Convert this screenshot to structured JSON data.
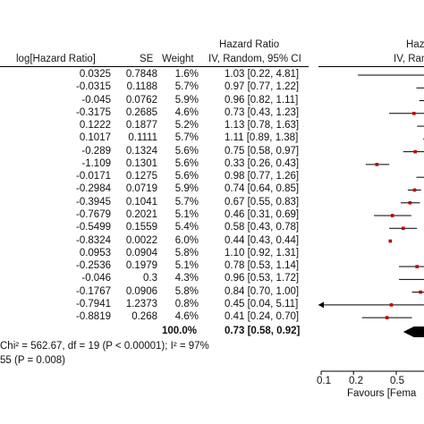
{
  "chart_data": {
    "type": "forest",
    "headers": {
      "log_hr": "log[Hazard Ratio]",
      "se": "SE",
      "weight": "Weight",
      "hr_title": "Hazard Ratio",
      "hr_sub": "IV, Random, 95% CI",
      "plot_title": "Hazard",
      "plot_sub": "IV, Random"
    },
    "rows": [
      {
        "log_hr": "0.0325",
        "se": "0.7848",
        "weight": "1.6%",
        "ci_text": "1.03 [0.22, 4.81]",
        "hr": 1.03,
        "lo": 0.22,
        "hi": 4.81
      },
      {
        "log_hr": "-0.0315",
        "se": "0.1188",
        "weight": "5.7%",
        "ci_text": "0.97 [0.77, 1.22]",
        "hr": 0.97,
        "lo": 0.77,
        "hi": 1.22
      },
      {
        "log_hr": "-0.045",
        "se": "0.0762",
        "weight": "5.9%",
        "ci_text": "0.96 [0.82, 1.11]",
        "hr": 0.96,
        "lo": 0.82,
        "hi": 1.11
      },
      {
        "log_hr": "-0.3175",
        "se": "0.2685",
        "weight": "4.6%",
        "ci_text": "0.73 [0.43, 1.23]",
        "hr": 0.73,
        "lo": 0.43,
        "hi": 1.23
      },
      {
        "log_hr": "0.1222",
        "se": "0.1877",
        "weight": "5.2%",
        "ci_text": "1.13 [0.78, 1.63]",
        "hr": 1.13,
        "lo": 0.78,
        "hi": 1.63
      },
      {
        "log_hr": "0.1017",
        "se": "0.1111",
        "weight": "5.7%",
        "ci_text": "1.11 [0.89, 1.38]",
        "hr": 1.11,
        "lo": 0.89,
        "hi": 1.38
      },
      {
        "log_hr": "-0.289",
        "se": "0.1324",
        "weight": "5.6%",
        "ci_text": "0.75 [0.58, 0.97]",
        "hr": 0.75,
        "lo": 0.58,
        "hi": 0.97
      },
      {
        "log_hr": "-1.109",
        "se": "0.1301",
        "weight": "5.6%",
        "ci_text": "0.33 [0.26, 0.43]",
        "hr": 0.33,
        "lo": 0.26,
        "hi": 0.43
      },
      {
        "log_hr": "-0.0171",
        "se": "0.1275",
        "weight": "5.6%",
        "ci_text": "0.98 [0.77, 1.26]",
        "hr": 0.98,
        "lo": 0.77,
        "hi": 1.26
      },
      {
        "log_hr": "-0.2984",
        "se": "0.0719",
        "weight": "5.9%",
        "ci_text": "0.74 [0.64, 0.85]",
        "hr": 0.74,
        "lo": 0.64,
        "hi": 0.85
      },
      {
        "log_hr": "-0.3945",
        "se": "0.1041",
        "weight": "5.7%",
        "ci_text": "0.67 [0.55, 0.83]",
        "hr": 0.67,
        "lo": 0.55,
        "hi": 0.83
      },
      {
        "log_hr": "-0.7679",
        "se": "0.2021",
        "weight": "5.1%",
        "ci_text": "0.46 [0.31, 0.69]",
        "hr": 0.46,
        "lo": 0.31,
        "hi": 0.69
      },
      {
        "log_hr": "-0.5499",
        "se": "0.1559",
        "weight": "5.4%",
        "ci_text": "0.58 [0.43, 0.78]",
        "hr": 0.58,
        "lo": 0.43,
        "hi": 0.78
      },
      {
        "log_hr": "-0.8324",
        "se": "0.0022",
        "weight": "6.0%",
        "ci_text": "0.44 [0.43, 0.44]",
        "hr": 0.44,
        "lo": 0.43,
        "hi": 0.44
      },
      {
        "log_hr": "0.0953",
        "se": "0.0904",
        "weight": "5.8%",
        "ci_text": "1.10 [0.92, 1.31]",
        "hr": 1.1,
        "lo": 0.92,
        "hi": 1.31
      },
      {
        "log_hr": "-0.2536",
        "se": "0.1979",
        "weight": "5.1%",
        "ci_text": "0.78 [0.53, 1.14]",
        "hr": 0.78,
        "lo": 0.53,
        "hi": 1.14
      },
      {
        "log_hr": "-0.046",
        "se": "0.3",
        "weight": "4.3%",
        "ci_text": "0.96 [0.53, 1.72]",
        "hr": 0.96,
        "lo": 0.53,
        "hi": 1.72
      },
      {
        "log_hr": "-0.1767",
        "se": "0.0906",
        "weight": "5.8%",
        "ci_text": "0.84 [0.70, 1.00]",
        "hr": 0.84,
        "lo": 0.7,
        "hi": 1.0
      },
      {
        "log_hr": "-0.7941",
        "se": "1.2373",
        "weight": "0.8%",
        "ci_text": "0.45 [0.04, 5.11]",
        "hr": 0.45,
        "lo": 0.04,
        "hi": 5.11
      },
      {
        "log_hr": "-0.8819",
        "se": "0.268",
        "weight": "4.6%",
        "ci_text": "0.41 [0.24, 0.70]",
        "hr": 0.41,
        "lo": 0.24,
        "hi": 0.7
      }
    ],
    "total": {
      "weight": "100.0%",
      "ci_text": "0.73 [0.58, 0.92]",
      "hr": 0.73,
      "lo": 0.58,
      "hi": 0.92
    },
    "heterogeneity": "Chi² = 562.67, df = 19 (P < 0.00001); I² = 97%",
    "overall_effect": "55 (P = 0.008)",
    "x_axis": {
      "scale": "log",
      "ticks": [
        "0.1",
        "0.2",
        "0.5"
      ],
      "tick_values": [
        0.1,
        0.2,
        0.5
      ]
    },
    "favours_label": "Favours [Fema",
    "colors": {
      "point": "#c00000",
      "line": "#000000",
      "diamond": "#000000"
    }
  }
}
